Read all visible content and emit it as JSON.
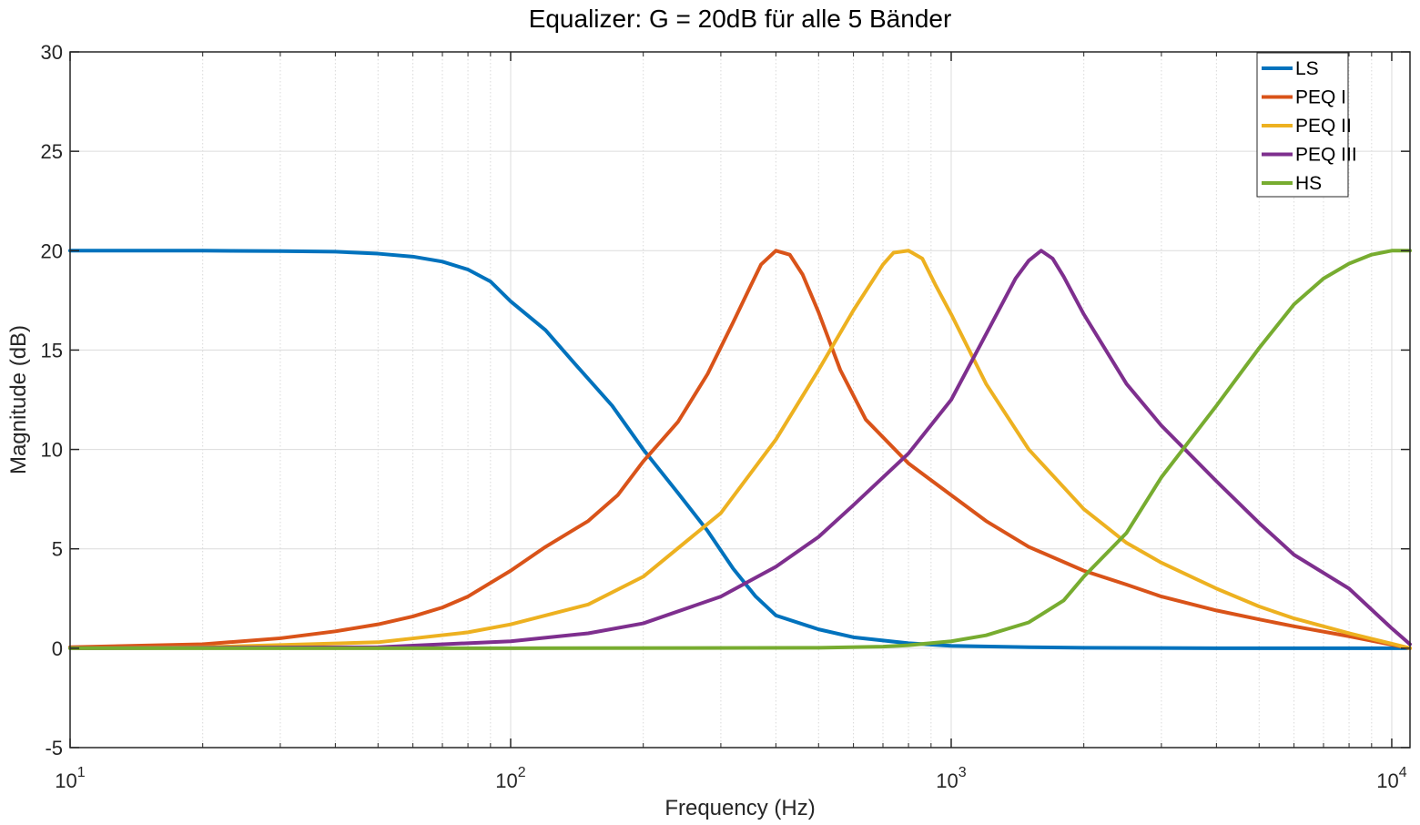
{
  "chart_data": {
    "type": "line",
    "title": "Equalizer: G = 20dB für alle 5 Bänder",
    "xlabel": "Frequency  (Hz)",
    "ylabel": "Magnitude (dB)",
    "xscale": "log",
    "xlim": [
      10,
      11000
    ],
    "ylim": [
      -5,
      30
    ],
    "grid": true,
    "legend_position": "top-right",
    "x_ticks": [
      10,
      100,
      1000,
      10000
    ],
    "x_tick_labels": [
      {
        "base": "10",
        "exp": "1"
      },
      {
        "base": "10",
        "exp": "2"
      },
      {
        "base": "10",
        "exp": "3"
      },
      {
        "base": "10",
        "exp": "4"
      }
    ],
    "y_ticks": [
      -5,
      0,
      5,
      10,
      15,
      20,
      25,
      30
    ],
    "y_tick_labels": [
      "-5",
      "0",
      "5",
      "10",
      "15",
      "20",
      "25",
      "30"
    ],
    "series": [
      {
        "name": "LS",
        "color": "#0072BD",
        "x": [
          10,
          20,
          30,
          40,
          50,
          60,
          70,
          80,
          90,
          100,
          120,
          140,
          170,
          200,
          240,
          280,
          320,
          360,
          400,
          500,
          600,
          800,
          1000,
          1500,
          2000,
          4000,
          11000
        ],
        "y": [
          20,
          20,
          19.98,
          19.95,
          19.85,
          19.7,
          19.45,
          19.05,
          18.45,
          17.45,
          16.0,
          14.3,
          12.2,
          10.0,
          7.8,
          5.9,
          4.0,
          2.6,
          1.65,
          0.95,
          0.55,
          0.25,
          0.12,
          0.05,
          0.02,
          0.0,
          0.0
        ]
      },
      {
        "name": "PEQ I",
        "color": "#D95319",
        "x": [
          10,
          20,
          30,
          40,
          50,
          60,
          70,
          80,
          100,
          120,
          150,
          175,
          200,
          240,
          280,
          320,
          350,
          370,
          400,
          430,
          460,
          500,
          560,
          640,
          800,
          1000,
          1200,
          1500,
          2000,
          2500,
          3000,
          4000,
          5000,
          6000,
          8000,
          11000
        ],
        "y": [
          0.05,
          0.2,
          0.5,
          0.85,
          1.2,
          1.6,
          2.05,
          2.6,
          3.9,
          5.1,
          6.4,
          7.7,
          9.4,
          11.4,
          13.8,
          16.4,
          18.2,
          19.3,
          20.0,
          19.8,
          18.8,
          16.9,
          14.0,
          11.5,
          9.3,
          7.7,
          6.4,
          5.1,
          3.9,
          3.2,
          2.6,
          1.9,
          1.45,
          1.1,
          0.6,
          0.0
        ]
      },
      {
        "name": "PEQ II",
        "color": "#EDB120",
        "x": [
          10,
          20,
          50,
          80,
          100,
          150,
          200,
          300,
          400,
          500,
          600,
          700,
          740,
          800,
          860,
          920,
          1000,
          1200,
          1500,
          2000,
          2500,
          3000,
          4000,
          5000,
          6000,
          8000,
          11000
        ],
        "y": [
          0.0,
          0.05,
          0.3,
          0.8,
          1.2,
          2.2,
          3.6,
          6.8,
          10.5,
          14.0,
          17.0,
          19.3,
          19.9,
          20.0,
          19.6,
          18.3,
          16.8,
          13.3,
          10.0,
          7.0,
          5.3,
          4.3,
          3.0,
          2.1,
          1.5,
          0.75,
          0.0
        ]
      },
      {
        "name": "PEQ III",
        "color": "#7E2F8E",
        "x": [
          10,
          50,
          100,
          150,
          200,
          300,
          400,
          500,
          600,
          800,
          1000,
          1200,
          1400,
          1500,
          1600,
          1700,
          1800,
          2000,
          2500,
          3000,
          4000,
          5000,
          6000,
          8000,
          10000,
          11000
        ],
        "y": [
          0.0,
          0.05,
          0.35,
          0.75,
          1.25,
          2.6,
          4.1,
          5.6,
          7.2,
          9.8,
          12.5,
          15.8,
          18.6,
          19.5,
          20.0,
          19.6,
          18.7,
          16.8,
          13.3,
          11.2,
          8.4,
          6.3,
          4.7,
          3.0,
          1.0,
          0.2
        ]
      },
      {
        "name": "HS",
        "color": "#77AC30",
        "x": [
          10,
          100,
          500,
          700,
          800,
          1000,
          1200,
          1500,
          1800,
          2000,
          2500,
          3000,
          4000,
          5000,
          6000,
          7000,
          8000,
          9000,
          10000,
          11000
        ],
        "y": [
          0.0,
          0.0,
          0.02,
          0.08,
          0.15,
          0.35,
          0.65,
          1.3,
          2.4,
          3.6,
          5.8,
          8.6,
          12.2,
          15.1,
          17.3,
          18.6,
          19.35,
          19.8,
          20.0,
          20.0
        ]
      }
    ]
  }
}
